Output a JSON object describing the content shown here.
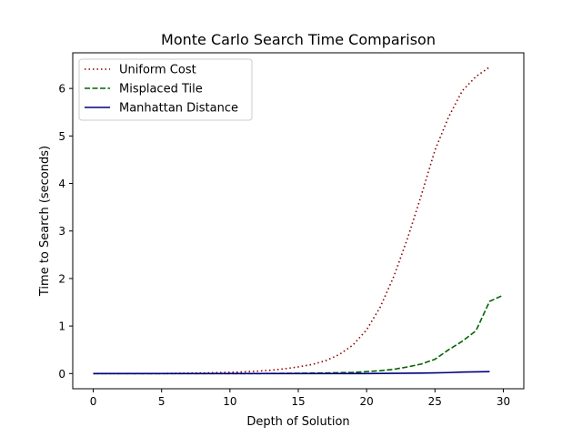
{
  "chart_data": {
    "type": "line",
    "title": "Monte Carlo Search Time Comparison",
    "xlabel": "Depth of Solution",
    "ylabel": "Time to Search (seconds)",
    "xlim": [
      -1.5,
      31.5
    ],
    "ylim": [
      -0.32,
      6.75
    ],
    "xticks": [
      0,
      5,
      10,
      15,
      20,
      25,
      30
    ],
    "yticks": [
      0,
      1,
      2,
      3,
      4,
      5,
      6
    ],
    "grid": false,
    "legend_position": "upper-left",
    "series": [
      {
        "name": "Uniform Cost",
        "color": "#8b0000",
        "style": "dotted",
        "x": [
          0,
          1,
          2,
          3,
          4,
          5,
          6,
          7,
          8,
          9,
          10,
          11,
          12,
          13,
          14,
          15,
          16,
          17,
          18,
          19,
          20,
          21,
          22,
          23,
          24,
          25,
          26,
          27,
          28,
          29
        ],
        "y": [
          0,
          0,
          0,
          0,
          0,
          0,
          0.005,
          0.008,
          0.012,
          0.018,
          0.025,
          0.035,
          0.05,
          0.07,
          0.1,
          0.14,
          0.19,
          0.27,
          0.4,
          0.6,
          0.92,
          1.4,
          2.05,
          2.85,
          3.75,
          4.7,
          5.4,
          5.95,
          6.25,
          6.45
        ]
      },
      {
        "name": "Misplaced Tile",
        "color": "#006400",
        "style": "dashed",
        "x": [
          0,
          1,
          2,
          3,
          4,
          5,
          6,
          7,
          8,
          9,
          10,
          11,
          12,
          13,
          14,
          15,
          16,
          17,
          18,
          19,
          20,
          21,
          22,
          23,
          24,
          25,
          26,
          27,
          28,
          29,
          30
        ],
        "y": [
          0,
          0,
          0,
          0,
          0,
          0,
          0,
          0,
          0,
          0,
          0,
          0,
          0,
          0.002,
          0.004,
          0.006,
          0.009,
          0.013,
          0.018,
          0.025,
          0.04,
          0.06,
          0.09,
          0.14,
          0.2,
          0.3,
          0.5,
          0.68,
          0.9,
          1.52,
          1.65
        ]
      },
      {
        "name": "Manhattan Distance",
        "color": "#000080",
        "style": "solid",
        "x": [
          0,
          1,
          2,
          3,
          4,
          5,
          6,
          7,
          8,
          9,
          10,
          11,
          12,
          13,
          14,
          15,
          16,
          17,
          18,
          19,
          20,
          21,
          22,
          23,
          24,
          25,
          26,
          27,
          28,
          29
        ],
        "y": [
          0,
          0,
          0,
          0,
          0,
          0,
          0,
          0,
          0,
          0,
          0,
          0,
          0,
          0,
          0,
          0,
          0,
          0,
          0,
          0,
          0,
          0.002,
          0.004,
          0.007,
          0.01,
          0.015,
          0.02,
          0.03,
          0.035,
          0.04
        ]
      }
    ]
  }
}
